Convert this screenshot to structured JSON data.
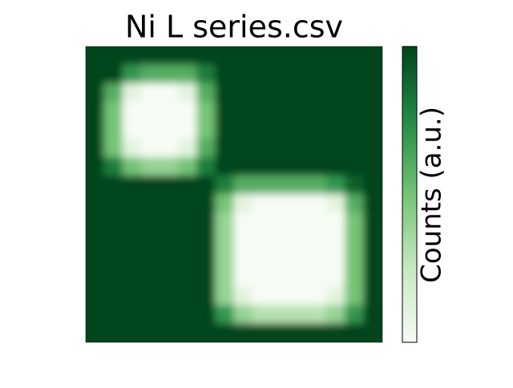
{
  "chart_data": {
    "type": "heatmap",
    "title": "Ni L series.csv",
    "colorbar_label": "Counts (a.u.)",
    "colormap": [
      "#f7fcf5",
      "#c7e9c0",
      "#74c476",
      "#238b45",
      "#00441b"
    ],
    "clim": [
      0,
      1
    ],
    "values": [
      [
        1,
        1,
        1,
        1,
        1,
        1,
        1,
        1,
        1,
        1,
        1,
        1,
        1,
        1,
        1,
        1
      ],
      [
        1,
        1,
        0.7,
        0.6,
        0.6,
        0.6,
        0.8,
        1,
        1,
        1,
        1,
        1,
        1,
        1,
        1,
        1
      ],
      [
        1,
        0.6,
        0.1,
        0,
        0,
        0.1,
        0.6,
        1,
        1,
        1,
        1,
        1,
        1,
        1,
        1,
        1
      ],
      [
        1,
        0.5,
        0,
        0,
        0,
        0,
        0.5,
        1,
        1,
        1,
        1,
        1,
        1,
        1,
        1,
        1
      ],
      [
        1,
        0.5,
        0,
        0,
        0,
        0,
        0.5,
        1,
        1,
        1,
        1,
        1,
        1,
        1,
        1,
        1
      ],
      [
        1,
        0.5,
        0.1,
        0,
        0,
        0.1,
        0.6,
        1,
        1,
        1,
        1,
        1,
        1,
        1,
        1,
        1
      ],
      [
        1,
        0.8,
        0.5,
        0.4,
        0.4,
        0.5,
        0.8,
        1,
        1,
        1,
        1,
        1,
        1,
        1,
        1,
        1
      ],
      [
        1,
        1,
        1,
        1,
        1,
        1,
        1,
        0.8,
        0.6,
        0.6,
        0.6,
        0.6,
        0.6,
        0.7,
        0.9,
        1
      ],
      [
        1,
        1,
        1,
        1,
        1,
        1,
        1,
        0.5,
        0.1,
        0,
        0,
        0,
        0,
        0.1,
        0.6,
        1
      ],
      [
        1,
        1,
        1,
        1,
        1,
        1,
        1,
        0.4,
        0,
        0,
        0,
        0,
        0,
        0,
        0.5,
        1
      ],
      [
        1,
        1,
        1,
        1,
        1,
        1,
        1,
        0.4,
        0,
        0,
        0,
        0,
        0,
        0,
        0.5,
        1
      ],
      [
        1,
        1,
        1,
        1,
        1,
        1,
        1,
        0.4,
        0,
        0,
        0,
        0,
        0,
        0,
        0.5,
        1
      ],
      [
        1,
        1,
        1,
        1,
        1,
        1,
        1,
        0.4,
        0,
        0,
        0,
        0,
        0,
        0,
        0.5,
        1
      ],
      [
        1,
        1,
        1,
        1,
        1,
        1,
        1,
        0.4,
        0.1,
        0,
        0,
        0,
        0,
        0.1,
        0.5,
        1
      ],
      [
        1,
        1,
        1,
        1,
        1,
        1,
        1,
        0.7,
        0.4,
        0.3,
        0.3,
        0.3,
        0.3,
        0.4,
        0.7,
        1
      ],
      [
        1,
        1,
        1,
        1,
        1,
        1,
        1,
        1,
        1,
        1,
        1,
        1,
        1,
        1,
        1,
        1
      ]
    ]
  }
}
